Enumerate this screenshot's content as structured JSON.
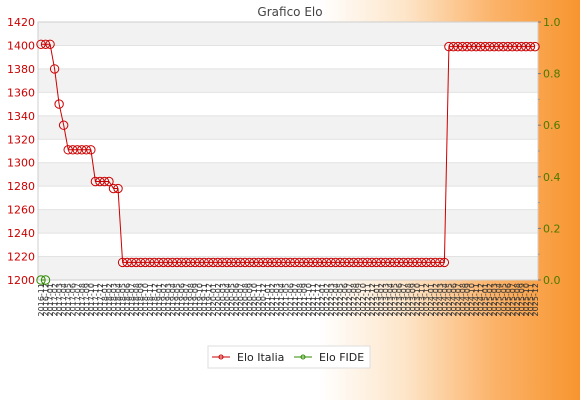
{
  "chart_data": {
    "type": "line",
    "title": "Grafico Elo",
    "x_tick_labels": [
      "2016-11",
      "2016-12",
      "2017-01",
      "2017-02",
      "2017-03",
      "2017-04",
      "2017-05",
      "2017-06",
      "2017-07",
      "2017-08",
      "2017-09",
      "2017-10",
      "2017-11",
      "2017-12",
      "2018-01",
      "2018-02",
      "2018-03",
      "2018-04",
      "2018-05",
      "2018-06",
      "2018-07",
      "2018-08",
      "2018-09",
      "2018-10",
      "2018-11",
      "2018-12",
      "2019-01",
      "2019-02",
      "2019-03",
      "2019-04",
      "2019-05",
      "2019-06",
      "2019-07",
      "2019-08",
      "2019-09",
      "2019-10",
      "2019-11",
      "2019-12",
      "2020-01",
      "2020-02",
      "2020-03",
      "2020-04",
      "2020-05",
      "2020-06",
      "2020-07",
      "2020-08",
      "2020-09",
      "2020-10",
      "2020-11",
      "2020-12",
      "2021-01",
      "2021-02",
      "2021-03",
      "2021-04",
      "2021-05",
      "2021-06",
      "2021-07",
      "2021-08",
      "2021-09",
      "2021-10",
      "2021-11",
      "2021-12",
      "2022-01",
      "2022-02",
      "2022-03",
      "2022-04",
      "2022-05",
      "2022-06",
      "2022-07",
      "2022-08",
      "2022-09",
      "2022-10",
      "2022-11",
      "2022-12",
      "2023-01",
      "2023-02",
      "2023-03",
      "2023-04",
      "2023-05",
      "2023-06",
      "2023-07",
      "2023-08",
      "2023-09",
      "2023-10",
      "2023-11",
      "2023-12",
      "2024-01",
      "2024-02",
      "2024-03",
      "2024-04",
      "2024-05",
      "2024-06",
      "2024-07",
      "2024-08",
      "2024-09",
      "2024-10",
      "2024-11",
      "2024-12",
      "2025-01",
      "2025-02",
      "2025-03",
      "2025-04",
      "2025-05",
      "2025-06",
      "2025-07",
      "2025-08",
      "2025-09",
      "2025-10",
      "2025-11",
      "2025-12"
    ],
    "y_left": {
      "range": [
        1200,
        1420
      ],
      "ticks": [
        1200,
        1220,
        1240,
        1260,
        1280,
        1300,
        1320,
        1340,
        1360,
        1380,
        1400,
        1420
      ]
    },
    "y_right": {
      "range": [
        0,
        1.0
      ],
      "ticks": [
        "0.0",
        "0.2",
        "0.4",
        "0.6",
        "0.8",
        "1.0"
      ]
    },
    "grid": true,
    "legend_position": "bottom",
    "series": [
      {
        "name": "Elo Italia",
        "color": "#cc0000",
        "axis": "left",
        "values": [
          1401,
          1401,
          1401,
          1380,
          1350,
          1332,
          1311,
          1311,
          1311,
          1311,
          1311,
          1311,
          1284,
          1284,
          1284,
          1284,
          1278,
          1278,
          1215,
          1215,
          1215,
          1215,
          1215,
          1215,
          1215,
          1215,
          1215,
          1215,
          1215,
          1215,
          1215,
          1215,
          1215,
          1215,
          1215,
          1215,
          1215,
          1215,
          1215,
          1215,
          1215,
          1215,
          1215,
          1215,
          1215,
          1215,
          1215,
          1215,
          1215,
          1215,
          1215,
          1215,
          1215,
          1215,
          1215,
          1215,
          1215,
          1215,
          1215,
          1215,
          1215,
          1215,
          1215,
          1215,
          1215,
          1215,
          1215,
          1215,
          1215,
          1215,
          1215,
          1215,
          1215,
          1215,
          1215,
          1215,
          1215,
          1215,
          1215,
          1215,
          1215,
          1215,
          1215,
          1215,
          1215,
          1215,
          1215,
          1215,
          1215,
          1215,
          1399,
          1399,
          1399,
          1399,
          1399,
          1399,
          1399,
          1399,
          1399,
          1399,
          1399,
          1399,
          1399,
          1399,
          1399,
          1399,
          1399,
          1399,
          1399,
          1399
        ]
      },
      {
        "name": "Elo FIDE",
        "color": "#2e8b00",
        "axis": "left",
        "values": [
          1200,
          1200
        ]
      }
    ]
  }
}
